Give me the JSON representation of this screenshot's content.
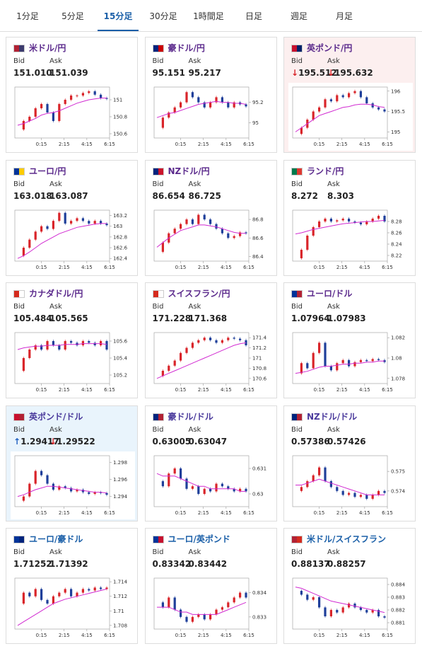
{
  "tabs": {
    "items": [
      "1分足",
      "5分足",
      "15分足",
      "30分足",
      "1時間足",
      "日足",
      "週足",
      "月足"
    ],
    "active": 2,
    "active_color": "#1a5fa8"
  },
  "labels": {
    "bid": "Bid",
    "ask": "Ask"
  },
  "x_ticks": [
    "0:15",
    "2:15",
    "4:15",
    "6:15"
  ],
  "colors": {
    "up": "#d9252a",
    "down": "#1f3f9a",
    "ma": "#d12ad1"
  },
  "cards": [
    {
      "name": "米ドル/円",
      "color": "#5b2a8c",
      "flag": [
        "#b22234",
        "#3c3b6e"
      ],
      "bid": "151.010",
      "ask": "151.039",
      "ylim": [
        150.55,
        151.15
      ],
      "yticks": [
        151,
        150.8,
        150.6
      ],
      "close": [
        150.65,
        150.75,
        150.8,
        150.9,
        150.95,
        150.85,
        150.75,
        150.95,
        151.0,
        151.05,
        151.05,
        151.08,
        151.1,
        151.06,
        151.02,
        151.01
      ],
      "ma": [
        150.7,
        150.72,
        150.75,
        150.78,
        150.82,
        150.84,
        150.85,
        150.87,
        150.9,
        150.93,
        150.96,
        150.98,
        151.0,
        151.01,
        151.02,
        151.02
      ]
    },
    {
      "name": "豪ドル/円",
      "color": "#5b2a8c",
      "flag": [
        "#00247d",
        "#cc0000"
      ],
      "bid": "95.151",
      "ask": "95.217",
      "ylim": [
        94.85,
        95.35
      ],
      "yticks": [
        95.2,
        95
      ],
      "close": [
        94.95,
        95.05,
        95.1,
        95.15,
        95.2,
        95.3,
        95.25,
        95.2,
        95.15,
        95.2,
        95.25,
        95.2,
        95.15,
        95.2,
        95.18,
        95.16
      ],
      "ma": [
        95.05,
        95.07,
        95.09,
        95.1,
        95.12,
        95.14,
        95.16,
        95.18,
        95.19,
        95.2,
        95.21,
        95.2,
        95.2,
        95.19,
        95.19,
        95.18
      ]
    },
    {
      "name": "英ポンド/円",
      "color": "#5b2a8c",
      "flag": [
        "#c8102e",
        "#012169"
      ],
      "bid": "195.512",
      "ask": "195.632",
      "bid_arrow": "↓",
      "bid_arrow_color": "#d9252a",
      "ask_arrow": "↓",
      "ask_arrow_color": "#d9252a",
      "bg": "#fcefef",
      "ylim": [
        194.85,
        196.1
      ],
      "yticks": [
        196,
        195.5,
        195
      ],
      "close": [
        194.95,
        195.1,
        195.3,
        195.5,
        195.6,
        195.8,
        195.75,
        195.9,
        195.85,
        195.95,
        196.0,
        195.85,
        195.7,
        195.6,
        195.55,
        195.5
      ],
      "ma": [
        195.0,
        195.1,
        195.2,
        195.3,
        195.4,
        195.45,
        195.5,
        195.55,
        195.6,
        195.62,
        195.66,
        195.68,
        195.68,
        195.66,
        195.62,
        195.6
      ]
    },
    {
      "name": "ユーロ/円",
      "color": "#5b2a8c",
      "flag": [
        "#003399",
        "#ffcc00"
      ],
      "bid": "163.018",
      "ask": "163.087",
      "ylim": [
        162.35,
        163.3
      ],
      "yticks": [
        163.2,
        163,
        162.8,
        162.6,
        162.4
      ],
      "close": [
        162.45,
        162.6,
        162.75,
        162.9,
        163.0,
        162.95,
        163.1,
        163.25,
        163.05,
        163.1,
        163.15,
        163.1,
        163.05,
        163.1,
        163.05,
        163.02
      ],
      "ma": [
        162.4,
        162.45,
        162.52,
        162.6,
        162.68,
        162.74,
        162.8,
        162.86,
        162.9,
        162.94,
        162.98,
        163.0,
        163.02,
        163.04,
        163.05,
        163.05
      ]
    },
    {
      "name": "NZドル/円",
      "color": "#5b2a8c",
      "flag": [
        "#00247d",
        "#cc142b"
      ],
      "bid": "86.654",
      "ask": "86.725",
      "ylim": [
        86.35,
        86.9
      ],
      "yticks": [
        86.8,
        86.6,
        86.4
      ],
      "close": [
        86.45,
        86.55,
        86.65,
        86.7,
        86.75,
        86.8,
        86.75,
        86.85,
        86.8,
        86.75,
        86.7,
        86.65,
        86.6,
        86.62,
        86.66,
        86.65
      ],
      "ma": [
        86.5,
        86.55,
        86.6,
        86.64,
        86.68,
        86.7,
        86.72,
        86.74,
        86.74,
        86.73,
        86.72,
        86.7,
        86.68,
        86.66,
        86.65,
        86.65
      ]
    },
    {
      "name": "ランド/円",
      "color": "#5b2a8c",
      "flag": [
        "#007a4d",
        "#de3831"
      ],
      "bid": "8.272",
      "ask": "8.303",
      "ylim": [
        8.21,
        8.3
      ],
      "yticks": [
        8.28,
        8.26,
        8.24,
        8.22
      ],
      "close": [
        8.215,
        8.23,
        8.255,
        8.27,
        8.28,
        8.285,
        8.28,
        8.282,
        8.285,
        8.28,
        8.278,
        8.275,
        8.28,
        8.285,
        8.29,
        8.28
      ],
      "ma": [
        8.258,
        8.26,
        8.263,
        8.266,
        8.268,
        8.27,
        8.272,
        8.274,
        8.276,
        8.277,
        8.278,
        8.279,
        8.28,
        8.28,
        8.281,
        8.282
      ]
    },
    {
      "name": "カナダドル/円",
      "color": "#5b2a8c",
      "flag": [
        "#d52b1e",
        "#ffffff"
      ],
      "bid": "105.484",
      "ask": "105.565",
      "ylim": [
        105.1,
        105.7
      ],
      "yticks": [
        105.6,
        105.4,
        105.2
      ],
      "close": [
        105.25,
        105.4,
        105.5,
        105.55,
        105.5,
        105.6,
        105.55,
        105.5,
        105.6,
        105.58,
        105.55,
        105.6,
        105.58,
        105.55,
        105.6,
        105.5
      ],
      "ma": [
        105.5,
        105.52,
        105.53,
        105.54,
        105.54,
        105.55,
        105.55,
        105.55,
        105.56,
        105.56,
        105.56,
        105.57,
        105.57,
        105.57,
        105.57,
        105.56
      ]
    },
    {
      "name": "スイスフラン/円",
      "color": "#5b2a8c",
      "flag": [
        "#d52b1e",
        "#ffffff"
      ],
      "bid": "171.228",
      "ask": "171.368",
      "ylim": [
        170.5,
        171.5
      ],
      "yticks": [
        171.4,
        171.2,
        171,
        170.8,
        170.6
      ],
      "close": [
        170.65,
        170.75,
        170.85,
        170.95,
        171.1,
        171.2,
        171.3,
        171.35,
        171.4,
        171.35,
        171.3,
        171.35,
        171.4,
        171.38,
        171.35,
        171.25
      ],
      "ma": [
        170.6,
        170.65,
        170.7,
        170.75,
        170.8,
        170.85,
        170.9,
        170.95,
        171.0,
        171.05,
        171.1,
        171.15,
        171.2,
        171.25,
        171.28,
        171.3
      ]
    },
    {
      "name": "ユーロ/ドル",
      "color": "#5b2a8c",
      "flag": [
        "#003399",
        "#b22234"
      ],
      "bid": "1.07964",
      "ask": "1.07983",
      "ylim": [
        1.0775,
        1.0825
      ],
      "yticks": [
        1.082,
        1.08,
        1.078
      ],
      "close": [
        1.0785,
        1.0795,
        1.079,
        1.0805,
        1.0815,
        1.0792,
        1.0788,
        1.0795,
        1.0798,
        1.0792,
        1.0796,
        1.0798,
        1.0797,
        1.0799,
        1.0798,
        1.0796
      ],
      "ma": [
        1.0785,
        1.0786,
        1.0787,
        1.0789,
        1.0791,
        1.0792,
        1.0792,
        1.0793,
        1.0794,
        1.0794,
        1.0795,
        1.0795,
        1.0796,
        1.0796,
        1.0797,
        1.0797
      ]
    },
    {
      "name": "英ポンド/ドル",
      "color": "#4a3a9c",
      "flag": [
        "#c8102e",
        "#b22234"
      ],
      "bid": "1.29417",
      "ask": "1.29522",
      "bid_arrow": "↑",
      "bid_arrow_color": "#1f5fbf",
      "ask_arrow": "↓",
      "ask_arrow_color": "#d9252a",
      "bg": "#e9f4fc",
      "ylim": [
        1.2928,
        1.2988
      ],
      "yticks": [
        1.298,
        1.296,
        1.294
      ],
      "close": [
        1.2935,
        1.294,
        1.2955,
        1.297,
        1.2965,
        1.2955,
        1.2948,
        1.2952,
        1.295,
        1.2946,
        1.2948,
        1.2945,
        1.2943,
        1.2945,
        1.2944,
        1.2942
      ],
      "ma": [
        1.294,
        1.2942,
        1.2945,
        1.2948,
        1.295,
        1.2952,
        1.2952,
        1.2951,
        1.295,
        1.2949,
        1.2948,
        1.2947,
        1.2946,
        1.2945,
        1.2945,
        1.2944
      ]
    },
    {
      "name": "豪ドル/ドル",
      "color": "#4a3a9c",
      "flag": [
        "#00247d",
        "#b22234"
      ],
      "bid": "0.63005",
      "ask": "0.63047",
      "ylim": [
        0.6295,
        0.6315
      ],
      "yticks": [
        0.631,
        0.63
      ],
      "close": [
        0.6305,
        0.6303,
        0.6308,
        0.631,
        0.6306,
        0.6302,
        0.6303,
        0.63,
        0.6302,
        0.6301,
        0.6304,
        0.6303,
        0.6302,
        0.6301,
        0.6302,
        0.6301
      ],
      "ma": [
        0.6308,
        0.6307,
        0.6307,
        0.6307,
        0.6306,
        0.6305,
        0.6304,
        0.6303,
        0.6303,
        0.6302,
        0.6302,
        0.6302,
        0.6302,
        0.6302,
        0.6301,
        0.6301
      ]
    },
    {
      "name": "NZドル/ドル",
      "color": "#4a3a9c",
      "flag": [
        "#00247d",
        "#b22234"
      ],
      "bid": "0.57386",
      "ask": "0.57426",
      "ylim": [
        0.5732,
        0.5758
      ],
      "yticks": [
        0.575,
        0.574
      ],
      "close": [
        0.574,
        0.5742,
        0.5745,
        0.5748,
        0.5752,
        0.5745,
        0.5742,
        0.574,
        0.5738,
        0.5739,
        0.5737,
        0.5738,
        0.5736,
        0.5738,
        0.574,
        0.5739
      ],
      "ma": [
        0.5743,
        0.5743,
        0.5744,
        0.5745,
        0.5746,
        0.5745,
        0.5744,
        0.5743,
        0.5742,
        0.5741,
        0.574,
        0.5739,
        0.5738,
        0.5738,
        0.5738,
        0.5738
      ]
    },
    {
      "name": "ユーロ/豪ドル",
      "color": "#1a5fa8",
      "flag": [
        "#003399",
        "#00247d"
      ],
      "bid": "1.71252",
      "ask": "1.71392",
      "ylim": [
        1.7075,
        1.7145
      ],
      "yticks": [
        1.714,
        1.712,
        1.71,
        1.708
      ],
      "close": [
        1.711,
        1.7125,
        1.712,
        1.713,
        1.7115,
        1.711,
        1.712,
        1.7125,
        1.713,
        1.712,
        1.7125,
        1.713,
        1.7128,
        1.7132,
        1.713,
        1.7132
      ],
      "ma": [
        1.708,
        1.7085,
        1.709,
        1.7095,
        1.71,
        1.7105,
        1.711,
        1.7113,
        1.7116,
        1.7118,
        1.712,
        1.7122,
        1.7124,
        1.7126,
        1.7128,
        1.713
      ]
    },
    {
      "name": "ユーロ/英ポンド",
      "color": "#1a5fa8",
      "flag": [
        "#003399",
        "#c8102e"
      ],
      "bid": "0.83342",
      "ask": "0.83442",
      "ylim": [
        0.8325,
        0.8346
      ],
      "yticks": [
        0.834,
        0.833
      ],
      "close": [
        0.8336,
        0.8334,
        0.8338,
        0.8333,
        0.833,
        0.8328,
        0.833,
        0.8331,
        0.8329,
        0.8331,
        0.8333,
        0.8334,
        0.8336,
        0.8338,
        0.834,
        0.8338
      ],
      "ma": [
        0.8334,
        0.8334,
        0.8334,
        0.8333,
        0.8332,
        0.8332,
        0.8331,
        0.8331,
        0.8331,
        0.8331,
        0.8331,
        0.8332,
        0.8333,
        0.8334,
        0.8335,
        0.8336
      ]
    },
    {
      "name": "米ドル/スイスフラン",
      "color": "#1a5fa8",
      "flag": [
        "#b22234",
        "#d52b1e"
      ],
      "bid": "0.88137",
      "ask": "0.88257",
      "ylim": [
        0.8805,
        0.8845
      ],
      "yticks": [
        0.884,
        0.883,
        0.882,
        0.881
      ],
      "close": [
        0.8835,
        0.8832,
        0.8828,
        0.883,
        0.8822,
        0.8815,
        0.882,
        0.8818,
        0.8822,
        0.8825,
        0.8822,
        0.882,
        0.8818,
        0.882,
        0.8815,
        0.8814
      ],
      "ma": [
        0.8838,
        0.8837,
        0.8835,
        0.8833,
        0.8831,
        0.8829,
        0.8827,
        0.8826,
        0.8825,
        0.8824,
        0.8823,
        0.8822,
        0.8821,
        0.882,
        0.8819,
        0.8818
      ]
    }
  ]
}
